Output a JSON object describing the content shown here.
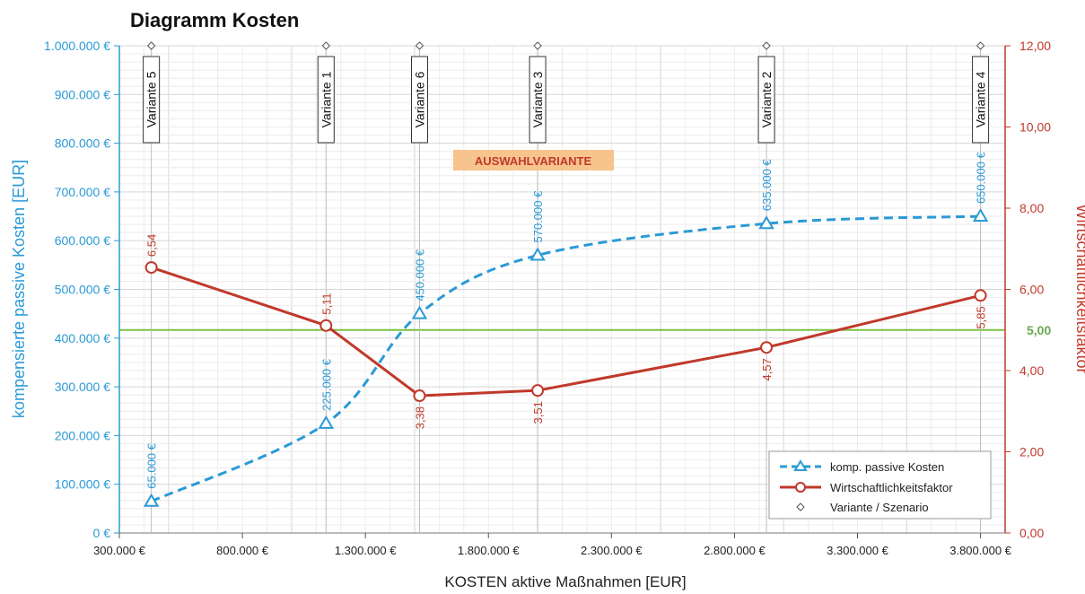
{
  "chart_data": {
    "type": "line",
    "title": "Diagramm Kosten",
    "xlabel": "KOSTEN aktive Maßnahmen [EUR]",
    "ylabel_left": "kompensierte passive Kosten [EUR]",
    "ylabel_right": "Wirtschaftlichkeitsfaktor",
    "xlim": [
      300000,
      3900000
    ],
    "ylim_left": [
      0,
      1000000
    ],
    "ylim_right": [
      0,
      12
    ],
    "x_ticks": [
      "300.000 €",
      "800.000 €",
      "1.300.000 €",
      "1.800.000 €",
      "2.300.000 €",
      "2.800.000 €",
      "3.300.000 €",
      "3.800.000 €"
    ],
    "y_left_ticks": [
      "0 €",
      "100.000 €",
      "200.000 €",
      "300.000 €",
      "400.000 €",
      "500.000 €",
      "600.000 €",
      "700.000 €",
      "800.000 €",
      "900.000 €",
      "1.000.000 €"
    ],
    "y_right_ticks": [
      "0,00",
      "2,00",
      "4,00",
      "6,00",
      "8,00",
      "10,00",
      "12,00"
    ],
    "reference_line": {
      "value": 5.0,
      "label": "5,00",
      "color": "#7cc242"
    },
    "annotation": {
      "text": "AUSWAHLVARIANTE",
      "color": "#c0392b",
      "background": "#f7c48e"
    },
    "variants": [
      {
        "name": "Variante 5",
        "x": 430000
      },
      {
        "name": "Variante 1",
        "x": 1140000
      },
      {
        "name": "Variante 6",
        "x": 1520000
      },
      {
        "name": "Variante 3",
        "x": 2000000
      },
      {
        "name": "Variante 2",
        "x": 2930000
      },
      {
        "name": "Variante 4",
        "x": 3800000
      }
    ],
    "series": [
      {
        "name": "komp. passive Kosten",
        "axis": "left",
        "color": "#2a9ad6",
        "style": "dashed",
        "marker": "triangle",
        "x": [
          430000,
          1140000,
          1520000,
          2000000,
          2930000,
          3800000
        ],
        "values": [
          65000,
          225000,
          450000,
          570000,
          635000,
          650000
        ],
        "labels": [
          "65.000 €",
          "225.000 €",
          "450.000 €",
          "570.000 €",
          "635.000 €",
          "650.000 €"
        ]
      },
      {
        "name": "Wirtschaftlichkeitsfaktor",
        "axis": "right",
        "color": "#c0392b",
        "style": "solid",
        "marker": "circle",
        "x": [
          430000,
          1140000,
          1520000,
          2000000,
          2930000,
          3800000
        ],
        "values": [
          6.54,
          5.11,
          3.38,
          3.51,
          4.57,
          5.85
        ],
        "labels": [
          "6,54",
          "5,11",
          "3,38",
          "3,51",
          "4,57",
          "5,85"
        ]
      }
    ],
    "legend": {
      "position": "bottom-right",
      "entries": [
        "komp. passive Kosten",
        "Wirtschaftlichkeitsfaktor",
        "Variante / Szenario"
      ]
    },
    "grid": true
  }
}
